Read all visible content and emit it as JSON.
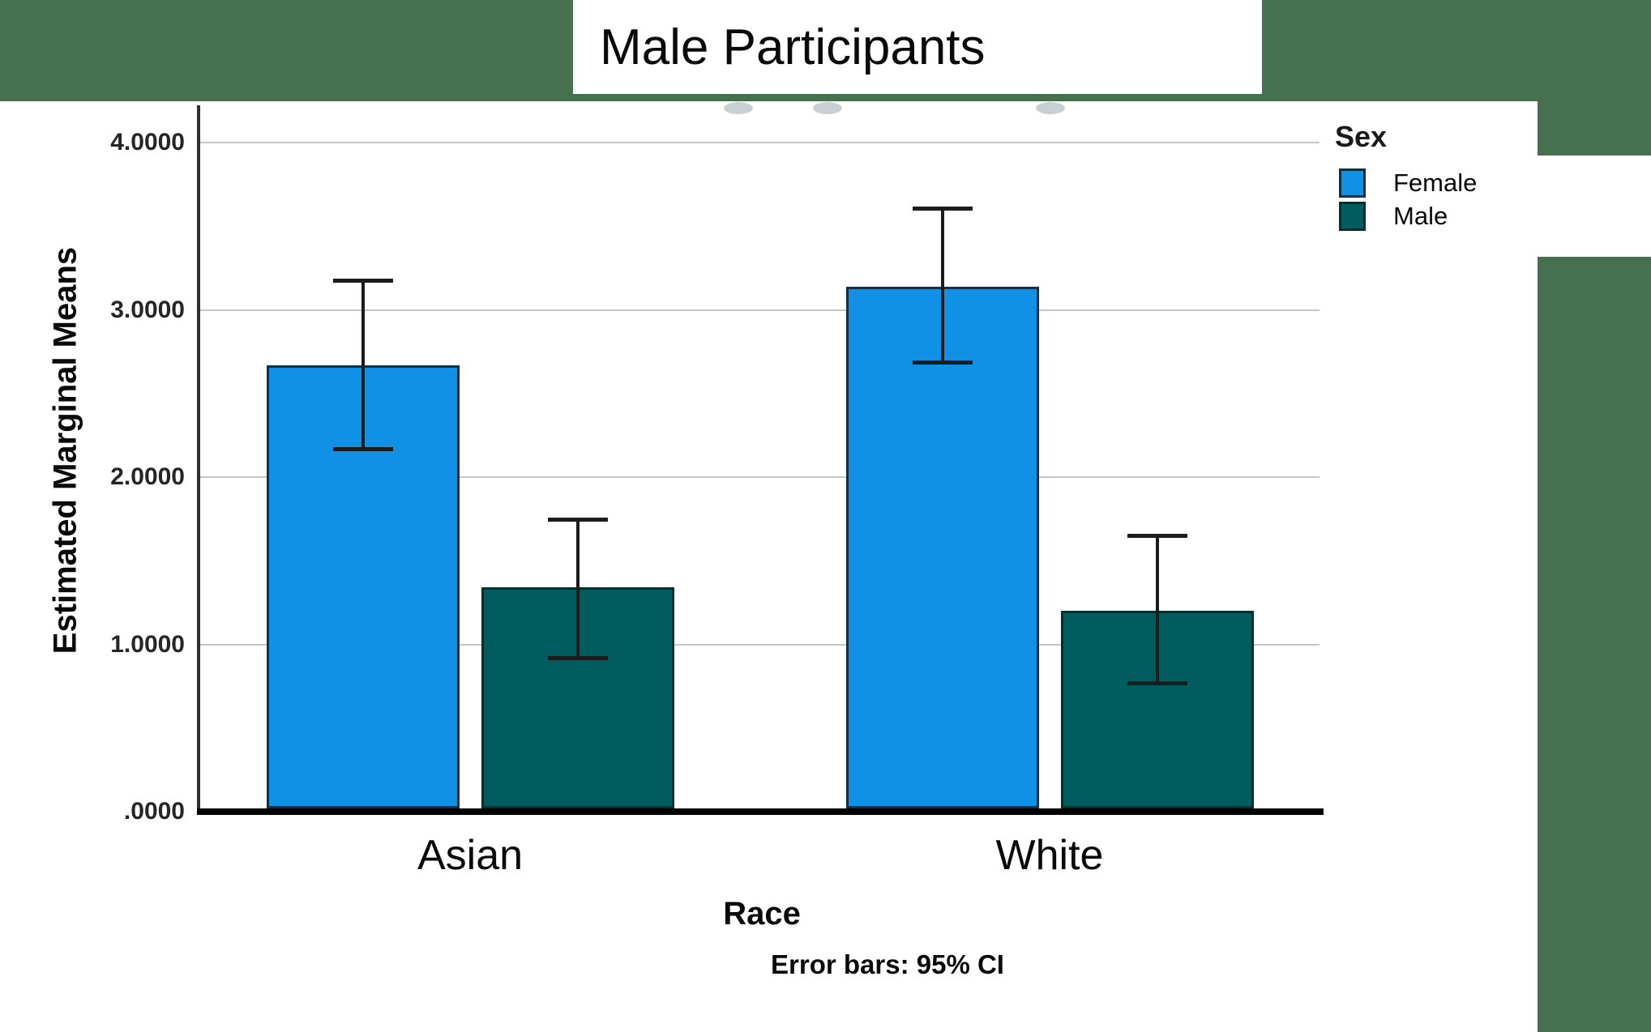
{
  "page": {
    "border_color": "#47704E",
    "background": "#FFFFFF"
  },
  "title_box": {
    "text": "Male Participants"
  },
  "chart_data": {
    "type": "bar",
    "title": "Male Participants",
    "categories": [
      "Asian",
      "White"
    ],
    "series": [
      {
        "name": "Female",
        "color": "#1191E5",
        "border_color": "#122F44",
        "values": [
          2.67,
          3.14
        ],
        "ci_low": [
          2.17,
          2.69
        ],
        "ci_high": [
          3.18,
          3.61
        ]
      },
      {
        "name": "Male",
        "color": "#005C5F",
        "border_color": "#03302F",
        "values": [
          1.34,
          1.2
        ],
        "ci_low": [
          0.92,
          0.77
        ],
        "ci_high": [
          1.75,
          1.65
        ]
      }
    ],
    "xlabel": "Race",
    "ylabel": "Estimated Marginal Means",
    "yticks": [
      ".0000",
      "1.0000",
      "2.0000",
      "3.0000",
      "4.0000"
    ],
    "ytick_values": [
      0,
      1,
      2,
      3,
      4
    ],
    "ylim": [
      0,
      4.22
    ],
    "grid": true,
    "legend_position": "right",
    "legend_title": "Sex",
    "caption": "Error bars: 95% CI",
    "error_bar_color": "#1c1c1c",
    "gridline_color": "#c6c6c6"
  }
}
